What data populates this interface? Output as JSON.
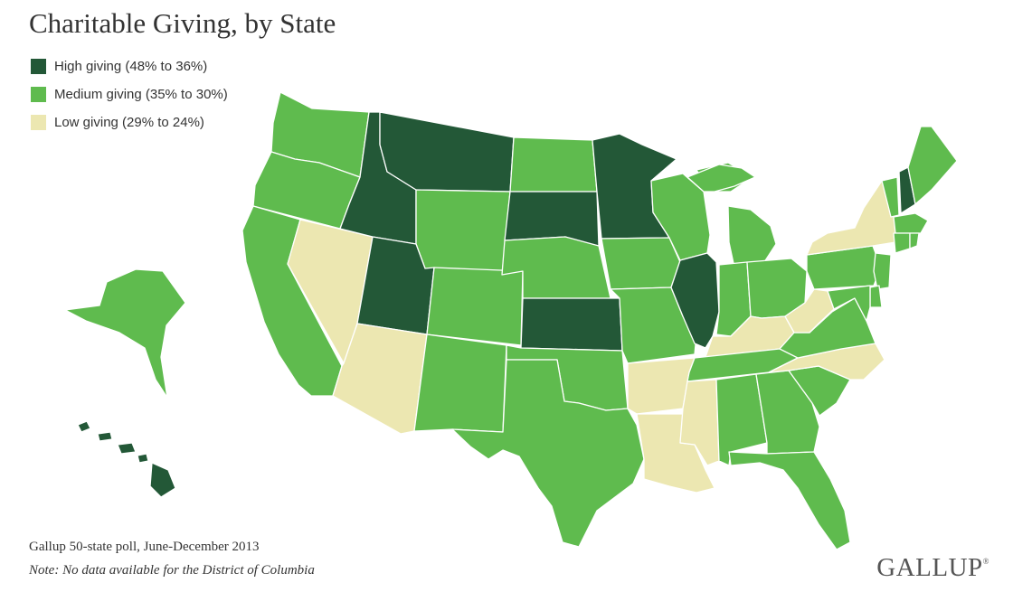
{
  "title": "Charitable Giving, by State",
  "legend": [
    {
      "key": "high",
      "label": "High giving (48% to 36%)",
      "color": "#235837"
    },
    {
      "key": "medium",
      "label": "Medium giving (35% to 30%)",
      "color": "#5fbb4e"
    },
    {
      "key": "low",
      "label": "Low giving (29% to 24%)",
      "color": "#ece7b1"
    }
  ],
  "categories": {
    "high": [
      "MT",
      "ID",
      "UT",
      "SD",
      "MN",
      "KS",
      "IL",
      "NH",
      "HI"
    ],
    "medium": [
      "WA",
      "OR",
      "CA",
      "WY",
      "CO",
      "NM",
      "TX",
      "OK",
      "NE",
      "ND",
      "IA",
      "MO",
      "WI",
      "MI",
      "IN",
      "OH",
      "PA",
      "NJ",
      "DE",
      "MD",
      "VA",
      "TN",
      "AL",
      "GA",
      "SC",
      "FL",
      "ME",
      "VT",
      "MA",
      "CT",
      "RI",
      "AK"
    ],
    "low": [
      "NV",
      "AZ",
      "AR",
      "LA",
      "MS",
      "KY",
      "WV",
      "NC",
      "NY"
    ]
  },
  "footer": {
    "source": "Gallup 50-state poll, June-December 2013",
    "note": "Note: No data available for the District of Columbia",
    "logo": "GALLUP",
    "logo_mark": "®"
  }
}
